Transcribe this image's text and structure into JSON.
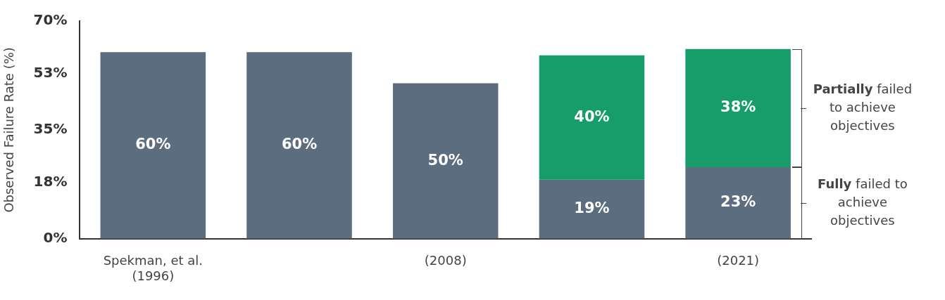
{
  "chart_data": {
    "type": "bar",
    "ylabel": "Observed Failure Rate (%)",
    "categories": [
      "Spekman, et al. (1996)",
      null,
      "(2008)",
      null,
      "(2021)"
    ],
    "stacked": true,
    "series": [
      {
        "name": "Fully failed to achieve objectives",
        "color": "#5b6d7e",
        "values": [
          60,
          60,
          50,
          19,
          23
        ],
        "value_labels": [
          "60%",
          "60%",
          "50%",
          "19%",
          "23%"
        ]
      },
      {
        "name": "Partially failed to achieve objectives",
        "color": "#179d69",
        "values": [
          null,
          null,
          null,
          40,
          38
        ],
        "value_labels": [
          null,
          null,
          null,
          "40%",
          "38%"
        ]
      }
    ],
    "ylim": [
      0,
      70
    ],
    "yticks": [
      {
        "value": 0,
        "label": "0%"
      },
      {
        "value": 18,
        "label": "18%"
      },
      {
        "value": 35,
        "label": "35%"
      },
      {
        "value": 53,
        "label": "53%"
      },
      {
        "value": 70,
        "label": "70%"
      }
    ],
    "grid": false,
    "legend": "right"
  }
}
